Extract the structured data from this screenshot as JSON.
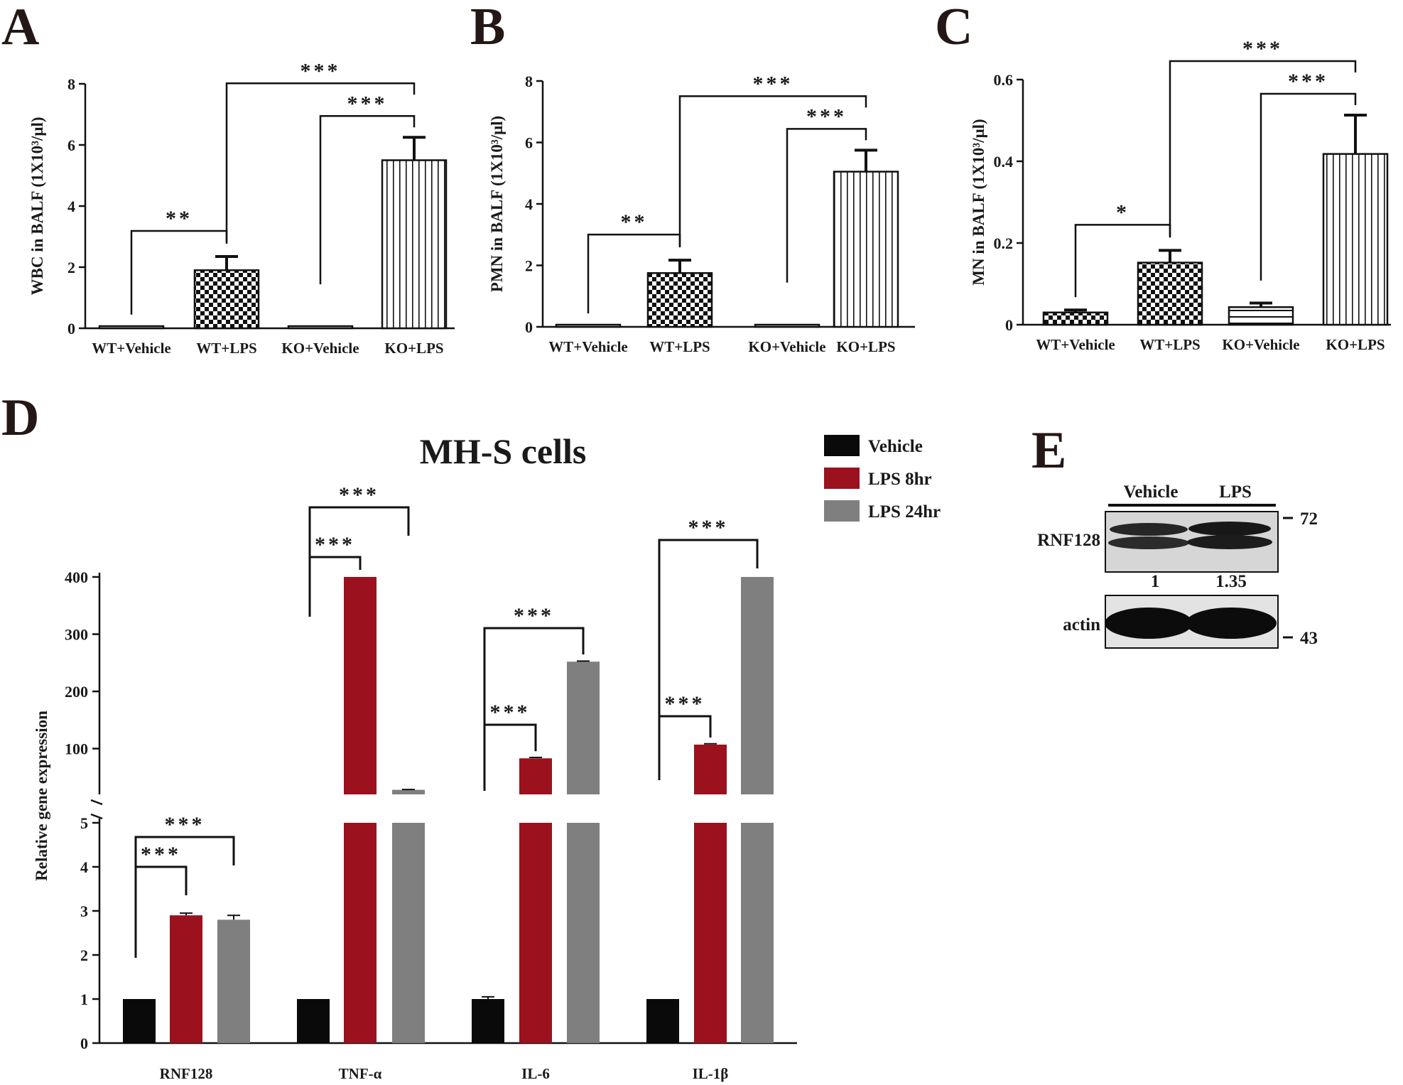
{
  "panels": [
    "A",
    "B",
    "C",
    "D",
    "E"
  ],
  "chart_data": [
    {
      "panel": "A",
      "type": "bar",
      "categories": [
        "WT+Vehicle",
        "WT+LPS",
        "KO+Vehicle",
        "KO+LPS"
      ],
      "values": [
        0.03,
        1.9,
        0.03,
        5.5
      ],
      "errors": [
        0.0,
        0.45,
        0.0,
        0.75
      ],
      "patterns": [
        "plain",
        "checker",
        "plain",
        "vstripe"
      ],
      "ylabel": "WBC in BALF (1X10³/μl)",
      "ylim": [
        0,
        8
      ],
      "yticks": [
        "0",
        "2",
        "4",
        "6",
        "8"
      ],
      "significance": [
        {
          "from": 0,
          "to": 1,
          "label": "**"
        },
        {
          "from": 2,
          "to": 3,
          "label": "***"
        },
        {
          "from": 1,
          "to": 3,
          "label": "***"
        }
      ]
    },
    {
      "panel": "B",
      "type": "bar",
      "categories": [
        "WT+Vehicle",
        "WT+LPS",
        "KO+Vehicle",
        "KO+LPS"
      ],
      "values": [
        0.02,
        1.75,
        0.02,
        5.05
      ],
      "errors": [
        0.0,
        0.42,
        0.0,
        0.7
      ],
      "patterns": [
        "plain",
        "checker",
        "plain",
        "vstripe"
      ],
      "ylabel": "PMN in BALF (1X10³/μl)",
      "ylim": [
        0,
        8
      ],
      "yticks": [
        "0",
        "2",
        "4",
        "6",
        "8"
      ],
      "significance": [
        {
          "from": 0,
          "to": 1,
          "label": "**"
        },
        {
          "from": 2,
          "to": 3,
          "label": "***"
        },
        {
          "from": 1,
          "to": 3,
          "label": "***"
        }
      ]
    },
    {
      "panel": "C",
      "type": "bar",
      "categories": [
        "WT+Vehicle",
        "WT+LPS",
        "KO+Vehicle",
        "KO+LPS"
      ],
      "values": [
        0.03,
        0.152,
        0.043,
        0.418
      ],
      "errors": [
        0.006,
        0.03,
        0.01,
        0.095
      ],
      "patterns": [
        "checker",
        "checker",
        "hstripe",
        "vstripe"
      ],
      "ylabel": "MN in BALF (1X10³/μl)",
      "ylim": [
        0,
        0.6
      ],
      "yticks": [
        "0",
        "0.2",
        "0.4",
        "0.6"
      ],
      "significance": [
        {
          "from": 0,
          "to": 1,
          "label": "*"
        },
        {
          "from": 2,
          "to": 3,
          "label": "***"
        },
        {
          "from": 1,
          "to": 3,
          "label": "***"
        }
      ]
    },
    {
      "panel": "D",
      "type": "bar",
      "title": "MH-S cells",
      "ylabel": "Relative  gene expression",
      "categories": [
        "RNF128",
        "TNF-α",
        "IL-6",
        "IL-1β"
      ],
      "series": [
        {
          "name": "Vehicle",
          "color": "#0a0a0a",
          "values": [
            1.0,
            1.0,
            1.0,
            1.0
          ],
          "errors": [
            0.0,
            0.0,
            0.05,
            0.0
          ]
        },
        {
          "name": "LPS 8hr",
          "color": "#9b111e",
          "values": [
            2.9,
            400,
            83,
            107
          ],
          "errors": [
            0.05,
            0.0,
            1.5,
            1.5
          ]
        },
        {
          "name": "LPS 24hr",
          "color": "#7f7f7f",
          "values": [
            2.8,
            28,
            252,
            400
          ],
          "errors": [
            0.1,
            0.5,
            1.0,
            0.0
          ]
        }
      ],
      "broken_axis": {
        "lower_range": [
          0,
          5
        ],
        "lower_ticks": [
          "0",
          "1",
          "2",
          "3",
          "4",
          "5"
        ],
        "upper_range": [
          20,
          400
        ],
        "upper_ticks": [
          "100",
          "200",
          "300",
          "400"
        ]
      },
      "significance": [
        {
          "group": 0,
          "from": 0,
          "to": 1,
          "label": "***"
        },
        {
          "group": 0,
          "from": 0,
          "to": 2,
          "label": "***"
        },
        {
          "group": 1,
          "from": 0,
          "to": 1,
          "label": "***"
        },
        {
          "group": 1,
          "from": 0,
          "to": 2,
          "label": "***"
        },
        {
          "group": 2,
          "from": 0,
          "to": 1,
          "label": "***"
        },
        {
          "group": 2,
          "from": 0,
          "to": 2,
          "label": "***"
        },
        {
          "group": 3,
          "from": 0,
          "to": 1,
          "label": "***"
        },
        {
          "group": 3,
          "from": 0,
          "to": 2,
          "label": "***"
        }
      ]
    }
  ],
  "blot": {
    "panel": "E",
    "lanes": [
      "Vehicle",
      "LPS"
    ],
    "rows": [
      "RNF128",
      "actin"
    ],
    "quantification": [
      "1",
      "1.35"
    ],
    "markers": [
      "72",
      "43"
    ]
  }
}
